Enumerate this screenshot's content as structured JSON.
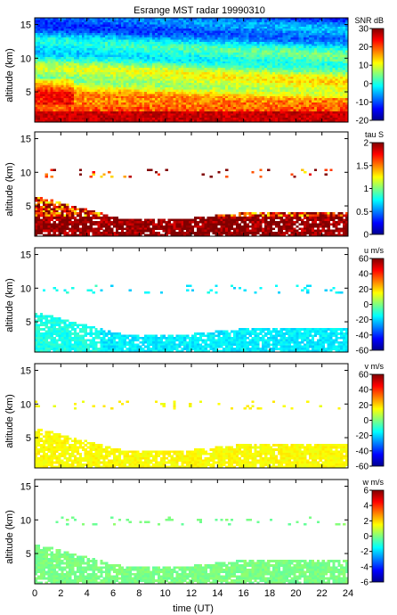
{
  "chart_data": [
    {
      "type": "heatmap",
      "title": "Esrange MST radar 19990310",
      "ylabel": "altitude (km)",
      "xlabel": "",
      "xlim": [
        0,
        24
      ],
      "ylim": [
        0.5,
        16
      ],
      "yticks": [
        5,
        10,
        15
      ],
      "x_tick_labels_shown": false,
      "colorbar": {
        "label": "SNR dB",
        "ticks": [
          30,
          20,
          10,
          0,
          -10,
          -20
        ],
        "range": [
          -20,
          30
        ]
      },
      "field": "SNR"
    },
    {
      "type": "heatmap",
      "title": "",
      "ylabel": "altitude (km)",
      "xlim": [
        0,
        24
      ],
      "ylim": [
        0.5,
        16
      ],
      "yticks": [
        5,
        10,
        15
      ],
      "x_tick_labels_shown": false,
      "colorbar": {
        "label": "tau S",
        "ticks": [
          2,
          1.5,
          1,
          0.5,
          0
        ],
        "range": [
          0,
          2
        ]
      },
      "field": "tau"
    },
    {
      "type": "heatmap",
      "title": "",
      "ylabel": "altitude (km)",
      "xlim": [
        0,
        24
      ],
      "ylim": [
        0.5,
        16
      ],
      "yticks": [
        5,
        10,
        15
      ],
      "x_tick_labels_shown": false,
      "colorbar": {
        "label": "u m/s",
        "ticks": [
          60,
          40,
          20,
          0,
          -20,
          -40,
          -60
        ],
        "range": [
          -60,
          60
        ]
      },
      "field": "u"
    },
    {
      "type": "heatmap",
      "title": "",
      "ylabel": "altitude (km)",
      "xlim": [
        0,
        24
      ],
      "ylim": [
        0.5,
        16
      ],
      "yticks": [
        5,
        10,
        15
      ],
      "x_tick_labels_shown": false,
      "colorbar": {
        "label": "v m/s",
        "ticks": [
          60,
          40,
          20,
          0,
          -20,
          -40,
          -60
        ],
        "range": [
          -60,
          60
        ]
      },
      "field": "v"
    },
    {
      "type": "heatmap",
      "title": "",
      "ylabel": "altitude (km)",
      "xlabel": "time (UT)",
      "xlim": [
        0,
        24
      ],
      "ylim": [
        0.5,
        16
      ],
      "xticks": [
        0,
        2,
        4,
        6,
        8,
        10,
        12,
        14,
        16,
        18,
        20,
        22,
        24
      ],
      "yticks": [
        5,
        10,
        15
      ],
      "x_tick_labels_shown": true,
      "colorbar": {
        "label": "w m/s",
        "ticks": [
          6,
          4,
          2,
          0,
          -2,
          -4,
          -6
        ],
        "range": [
          -6,
          6
        ]
      },
      "field": "w"
    }
  ]
}
